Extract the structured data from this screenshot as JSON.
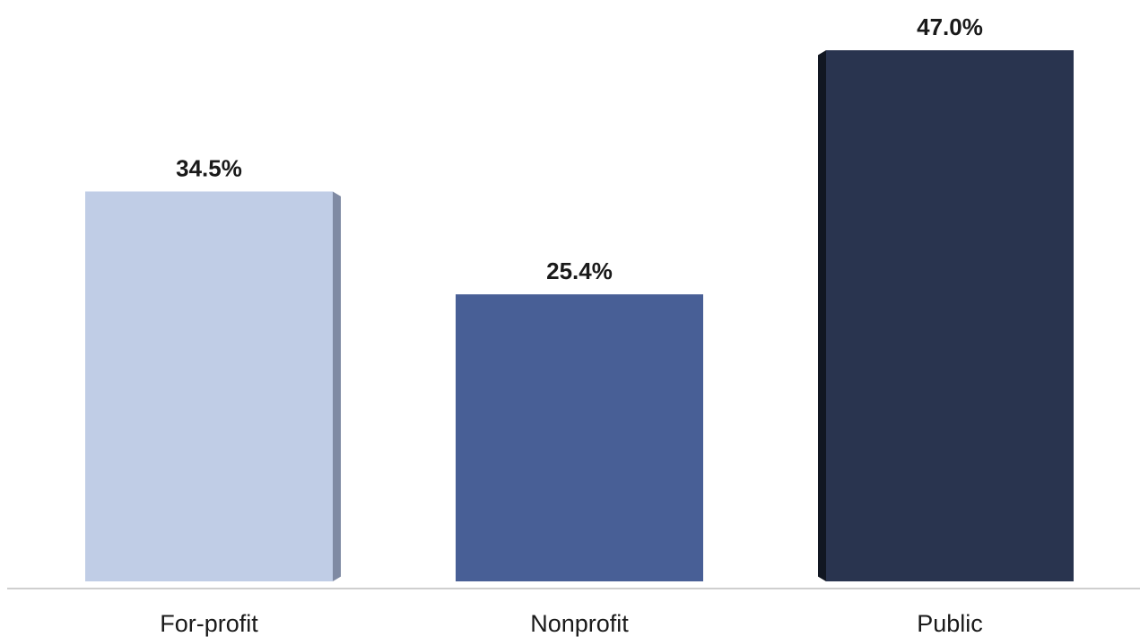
{
  "chart_data": {
    "type": "bar",
    "categories": [
      "For-profit",
      "Nonprofit",
      "Public"
    ],
    "values": [
      34.5,
      25.4,
      47.0
    ],
    "data_labels": [
      "34.5%",
      "25.4%",
      "47.0%"
    ],
    "colors": [
      "#c0cde6",
      "#485f96",
      "#29344f"
    ],
    "side_colors": [
      "#7f8aa3",
      "#34477a",
      "#111722"
    ],
    "title": "",
    "xlabel": "",
    "ylabel": "",
    "ylim": [
      0,
      47.0
    ],
    "grid": false,
    "legend": "none",
    "axis_color": "#cfcfcf"
  }
}
